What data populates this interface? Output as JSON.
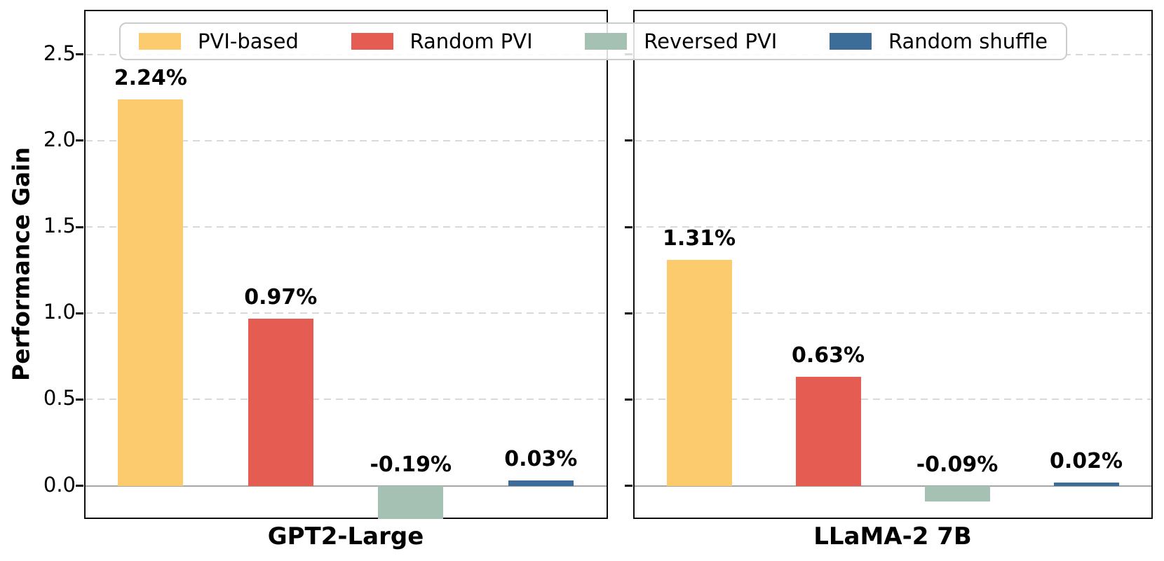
{
  "chart_data": {
    "type": "bar",
    "title": "",
    "ylabel": "Performance Gain",
    "ylim": [
      -0.2,
      2.75
    ],
    "yticks": [
      {
        "value": 0.0,
        "label": "0.0"
      },
      {
        "value": 0.5,
        "label": "0.5"
      },
      {
        "value": 1.0,
        "label": "1.0"
      },
      {
        "value": 1.5,
        "label": "1.5"
      },
      {
        "value": 2.0,
        "label": "2.0"
      },
      {
        "value": 2.5,
        "label": "2.5"
      }
    ],
    "grid": "horizontal-dashed",
    "legend_position": "top-spanning-both-subplots",
    "legend": [
      {
        "label": "PVI-based",
        "color": "#FCCB6E"
      },
      {
        "label": "Random PVI",
        "color": "#E45C52"
      },
      {
        "label": "Reversed PVI",
        "color": "#A4C1B3"
      },
      {
        "label": "Random shuffle",
        "color": "#3C6D99"
      }
    ],
    "subplots": [
      {
        "xlabel": "GPT2-Large",
        "series": [
          "PVI-based",
          "Random PVI",
          "Reversed PVI",
          "Random shuffle"
        ],
        "values": [
          2.24,
          0.97,
          -0.19,
          0.03
        ],
        "value_labels": [
          "2.24%",
          "0.97%",
          "-0.19%",
          "0.03%"
        ]
      },
      {
        "xlabel": "LLaMA-2 7B",
        "series": [
          "PVI-based",
          "Random PVI",
          "Reversed PVI",
          "Random shuffle"
        ],
        "values": [
          1.31,
          0.63,
          -0.09,
          0.02
        ],
        "value_labels": [
          "1.31%",
          "0.63%",
          "-0.09%",
          "0.02%"
        ]
      }
    ]
  }
}
